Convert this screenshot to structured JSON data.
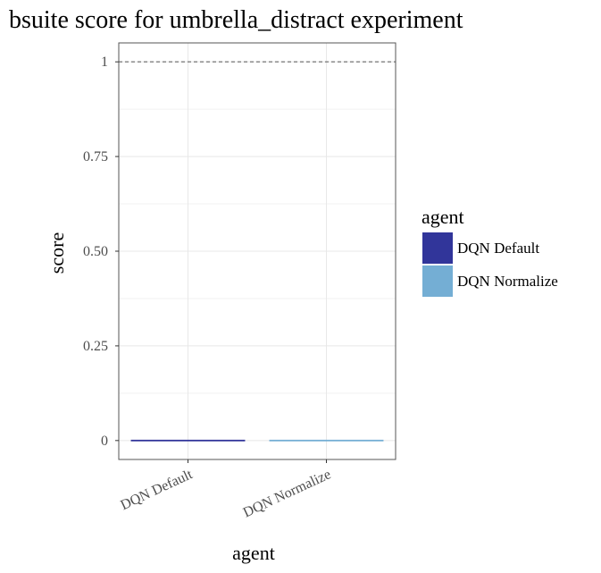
{
  "chart_data": {
    "type": "bar",
    "title": "bsuite score for umbrella_distract experiment",
    "xlabel": "agent",
    "ylabel": "score",
    "categories": [
      "DQN Default",
      "DQN Normalize"
    ],
    "values": [
      0,
      0
    ],
    "ylim": [
      -0.05,
      1.05
    ],
    "yticks": [
      0,
      0.25,
      0.5,
      0.75,
      1
    ],
    "ytick_labels": [
      "0",
      "0.25",
      "0.50",
      "0.75",
      "1"
    ],
    "reference_line": 1,
    "grid": true,
    "legend": {
      "title": "agent",
      "placement": "right",
      "entries": [
        {
          "label": "DQN Default",
          "color": "#31359a"
        },
        {
          "label": "DQN Normalize",
          "color": "#74aed4"
        }
      ]
    }
  }
}
